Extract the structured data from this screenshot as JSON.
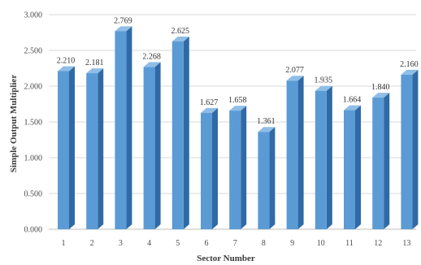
{
  "chart_data": {
    "type": "bar",
    "title": "",
    "xlabel": "Sector Number",
    "ylabel": "Simple Output Multiplier",
    "categories": [
      "1",
      "2",
      "3",
      "4",
      "5",
      "6",
      "7",
      "8",
      "9",
      "10",
      "11",
      "12",
      "13"
    ],
    "values": [
      2.21,
      2.181,
      2.769,
      2.268,
      2.625,
      1.627,
      1.658,
      1.361,
      2.077,
      1.935,
      1.664,
      1.84,
      2.16
    ],
    "data_labels": [
      "2.210",
      "2.181",
      "2.769",
      "2.268",
      "2.625",
      "1.627",
      "1.658",
      "1.361",
      "2.077",
      "1.935",
      "1.664",
      "1.840",
      "2.160"
    ],
    "y_ticks": [
      "0.000",
      "0.500",
      "1.000",
      "1.500",
      "2.000",
      "2.500",
      "3.000"
    ],
    "ylim": [
      0,
      3
    ],
    "grid": true,
    "legend": "none",
    "style": "3d-column",
    "colors": {
      "bar_front": "#5b9bd5",
      "bar_side": "#2f6aa6",
      "bar_top": "#8fbde6",
      "grid": "#d9d9d9"
    }
  }
}
